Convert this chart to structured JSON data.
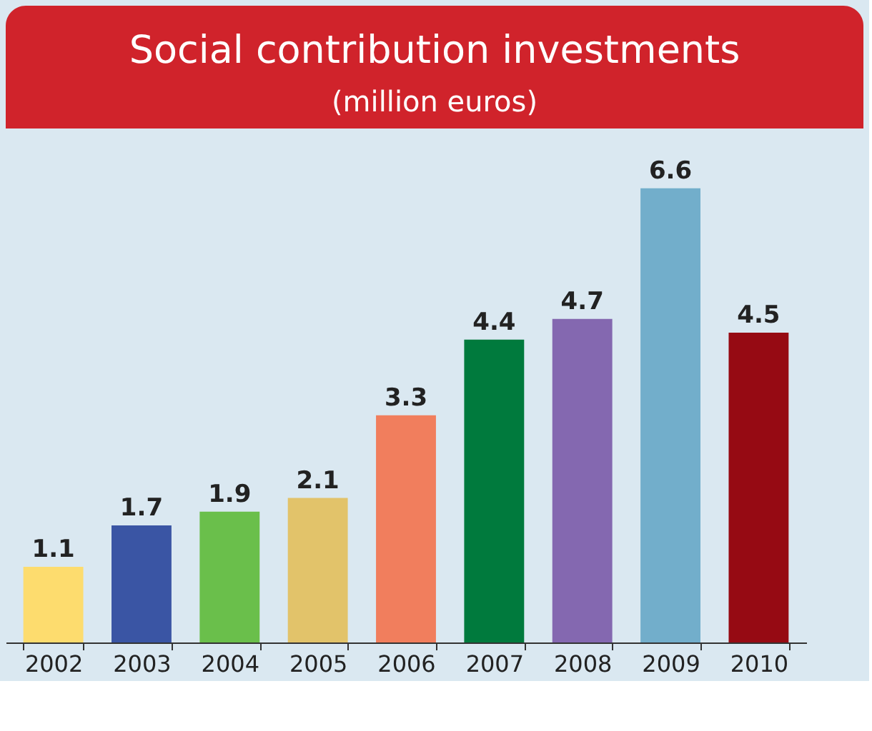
{
  "chart_data": {
    "type": "bar",
    "title": "Social contribution investments",
    "subtitle": "(million euros)",
    "categories": [
      "2002",
      "2003",
      "2004",
      "2005",
      "2006",
      "2007",
      "2008",
      "2009",
      "2010"
    ],
    "values": [
      1.1,
      1.7,
      1.9,
      2.1,
      3.3,
      4.4,
      4.7,
      6.6,
      4.5
    ],
    "colors": [
      "#fddc6e",
      "#3a55a4",
      "#6abf4b",
      "#e2c36a",
      "#f17e5d",
      "#007a3d",
      "#8468b0",
      "#72aecb",
      "#960a13"
    ],
    "data_labels": true
  }
}
